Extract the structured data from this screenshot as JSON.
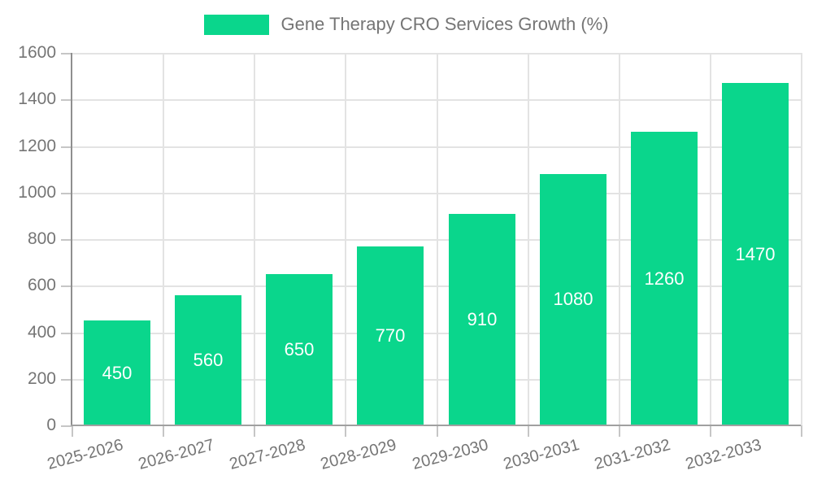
{
  "legend": {
    "label": "Gene Therapy CRO Services Growth (%)",
    "swatch_color": "#0ad68c"
  },
  "chart_data": {
    "type": "bar",
    "title": "",
    "categories": [
      "2025-2026",
      "2026-2027",
      "2027-2028",
      "2028-2029",
      "2029-2030",
      "2030-2031",
      "2031-2032",
      "2032-2033"
    ],
    "series": [
      {
        "name": "Gene Therapy CRO Services Growth (%)",
        "color": "#0ad68c",
        "values": [
          450,
          560,
          650,
          770,
          910,
          1080,
          1260,
          1470
        ]
      }
    ],
    "xlabel": "",
    "ylabel": "",
    "ylim": [
      0,
      1600
    ],
    "yticks": [
      0,
      200,
      400,
      600,
      800,
      1000,
      1200,
      1400,
      1600
    ],
    "grid": true,
    "legend_position": "top-center",
    "value_labels_position": "inside-center",
    "value_label_color": "#ffffff",
    "xtick_rotation_deg": 15
  },
  "colors": {
    "background": "#ffffff",
    "bar": "#0ad68c",
    "axis_text": "#757575",
    "gridline": "#e3e3e3",
    "axis_line": "#a0a0a0",
    "tick_mark": "#c6c6c6",
    "value_label": "#ffffff"
  }
}
